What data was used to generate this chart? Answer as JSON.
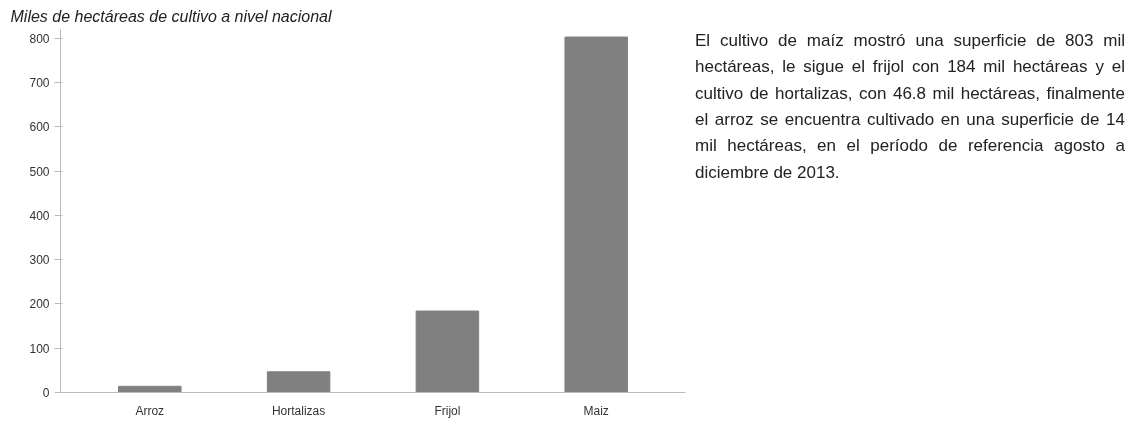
{
  "chart_data": {
    "type": "bar",
    "title": "Miles de hectáreas de cultivo a nivel nacional",
    "categories": [
      "Arroz",
      "Hortalizas",
      "Frijol",
      "Maiz"
    ],
    "values": [
      14,
      46.8,
      184,
      803
    ],
    "color": "#808080",
    "ylim": [
      0,
      820
    ],
    "yticks": [
      0,
      100,
      200,
      300,
      400,
      500,
      600,
      700,
      800
    ],
    "grid": false,
    "annotations": [
      "El cultivo de maíz mostró una superficie de  803 mil hectáreas, le sigue el frijol con 184 mil hectáreas y el cultivo de hortalizas, con 46.8 mil hectáreas, finalmente el arroz se encuentra cultivado en una superficie de 14 mil hectáreas, en el período de referencia agosto a diciembre de 2013."
    ]
  }
}
